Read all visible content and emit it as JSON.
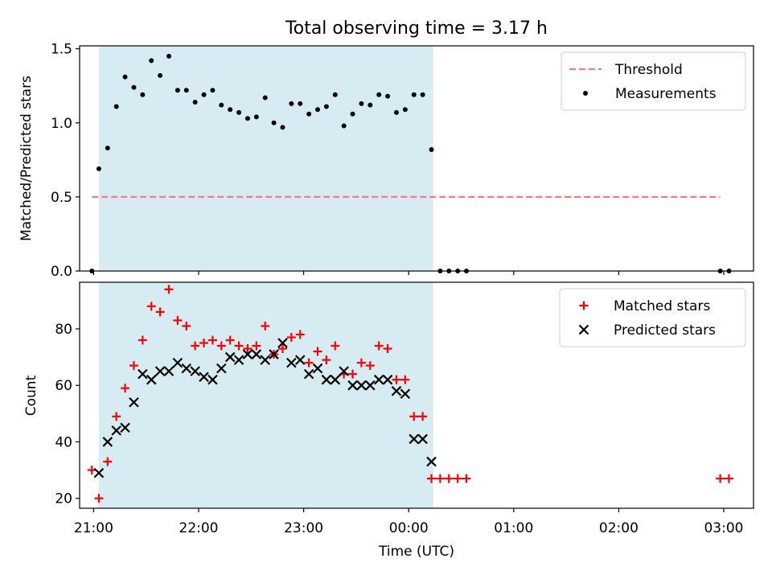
{
  "title": "Total observing time = 3.17 h",
  "chart_data": [
    {
      "type": "scatter",
      "ylabel": "Matched/Predicted stars",
      "xlabel": "",
      "x_unit": "hours after 21:00 UTC",
      "xlim": [
        "20:52",
        "03:17"
      ],
      "ylim": [
        0,
        1.52
      ],
      "yticks": [
        0.0,
        0.5,
        1.0,
        1.5
      ],
      "ytick_labels": [
        "0.0",
        "0.5",
        "1.0",
        "1.5"
      ],
      "shaded_region": {
        "x": [
          "21:03",
          "00:14"
        ],
        "color": "#add8e6"
      },
      "legend_position": "upper right",
      "threshold": {
        "name": "Threshold",
        "y": 0.5,
        "x": [
          "20:59",
          "02:58"
        ],
        "color": "#f08080",
        "style": "dashed"
      },
      "series": [
        {
          "name": "Measurements",
          "marker": "dot",
          "color": "#000000",
          "x": [
            "20:59",
            "21:03",
            "21:08",
            "21:13",
            "21:18",
            "21:23",
            "21:28",
            "21:33",
            "21:38",
            "21:43",
            "21:48",
            "21:53",
            "21:58",
            "22:03",
            "22:08",
            "22:13",
            "22:18",
            "22:23",
            "22:28",
            "22:33",
            "22:38",
            "22:43",
            "22:48",
            "22:53",
            "22:58",
            "23:03",
            "23:08",
            "23:13",
            "23:18",
            "23:23",
            "23:28",
            "23:33",
            "23:38",
            "23:43",
            "23:48",
            "23:53",
            "23:58",
            "00:03",
            "00:08",
            "00:13",
            "00:18",
            "00:23",
            "00:28",
            "00:33",
            "02:58",
            "03:03"
          ],
          "values": [
            0.0,
            0.69,
            0.83,
            1.11,
            1.31,
            1.24,
            1.19,
            1.42,
            1.32,
            1.45,
            1.22,
            1.22,
            1.14,
            1.19,
            1.22,
            1.12,
            1.09,
            1.07,
            1.03,
            1.04,
            1.17,
            1.0,
            0.97,
            1.13,
            1.13,
            1.06,
            1.09,
            1.11,
            1.19,
            0.98,
            1.06,
            1.13,
            1.12,
            1.19,
            1.18,
            1.07,
            1.09,
            1.19,
            1.19,
            0.82,
            0.0,
            0.0,
            0.0,
            0.0,
            0.0,
            0.0
          ]
        }
      ]
    },
    {
      "type": "scatter",
      "ylabel": "Count",
      "xlabel": "Time (UTC)",
      "xlim": [
        "20:52",
        "03:17"
      ],
      "ylim": [
        16.5,
        96.5
      ],
      "yticks": [
        20,
        40,
        60,
        80
      ],
      "ytick_labels": [
        "20",
        "40",
        "60",
        "80"
      ],
      "xticks": [
        "21:00",
        "22:00",
        "23:00",
        "00:00",
        "01:00",
        "02:00",
        "03:00"
      ],
      "shaded_region": {
        "x": [
          "21:03",
          "00:14"
        ],
        "color": "#add8e6"
      },
      "legend_position": "upper right",
      "series": [
        {
          "name": "Matched stars",
          "marker": "plus",
          "color": "#ff0000",
          "x": [
            "20:59",
            "21:03",
            "21:08",
            "21:13",
            "21:18",
            "21:23",
            "21:28",
            "21:33",
            "21:38",
            "21:43",
            "21:48",
            "21:53",
            "21:58",
            "22:03",
            "22:08",
            "22:13",
            "22:18",
            "22:23",
            "22:28",
            "22:33",
            "22:38",
            "22:43",
            "22:48",
            "22:53",
            "22:58",
            "23:03",
            "23:08",
            "23:13",
            "23:18",
            "23:23",
            "23:28",
            "23:33",
            "23:38",
            "23:43",
            "23:48",
            "23:53",
            "23:58",
            "00:03",
            "00:08",
            "00:13",
            "00:18",
            "00:23",
            "00:28",
            "00:33",
            "02:58",
            "03:03"
          ],
          "values": [
            30,
            20,
            33,
            49,
            59,
            67,
            76,
            88,
            86,
            94,
            83,
            81,
            74,
            75,
            76,
            74,
            76,
            74,
            73,
            74,
            81,
            71,
            73,
            77,
            78,
            68,
            72,
            69,
            74,
            64,
            64,
            68,
            67,
            74,
            73,
            62,
            62,
            49,
            49,
            27,
            27,
            27,
            27,
            27,
            27,
            27
          ]
        },
        {
          "name": "Predicted stars",
          "marker": "x",
          "color": "#000000",
          "x": [
            "21:03",
            "21:08",
            "21:13",
            "21:18",
            "21:23",
            "21:28",
            "21:33",
            "21:38",
            "21:43",
            "21:48",
            "21:53",
            "21:58",
            "22:03",
            "22:08",
            "22:13",
            "22:18",
            "22:23",
            "22:28",
            "22:33",
            "22:38",
            "22:43",
            "22:48",
            "22:53",
            "22:58",
            "23:03",
            "23:08",
            "23:13",
            "23:18",
            "23:23",
            "23:28",
            "23:33",
            "23:38",
            "23:43",
            "23:48",
            "23:53",
            "23:58",
            "00:03",
            "00:08",
            "00:13"
          ],
          "values": [
            29,
            40,
            44,
            45,
            54,
            64,
            62,
            65,
            65,
            68,
            66,
            65,
            63,
            62,
            66,
            70,
            69,
            71,
            71,
            69,
            71,
            75,
            68,
            69,
            64,
            66,
            62,
            62,
            65,
            60,
            60,
            60,
            62,
            62,
            58,
            57,
            41,
            41,
            33
          ]
        }
      ]
    }
  ]
}
